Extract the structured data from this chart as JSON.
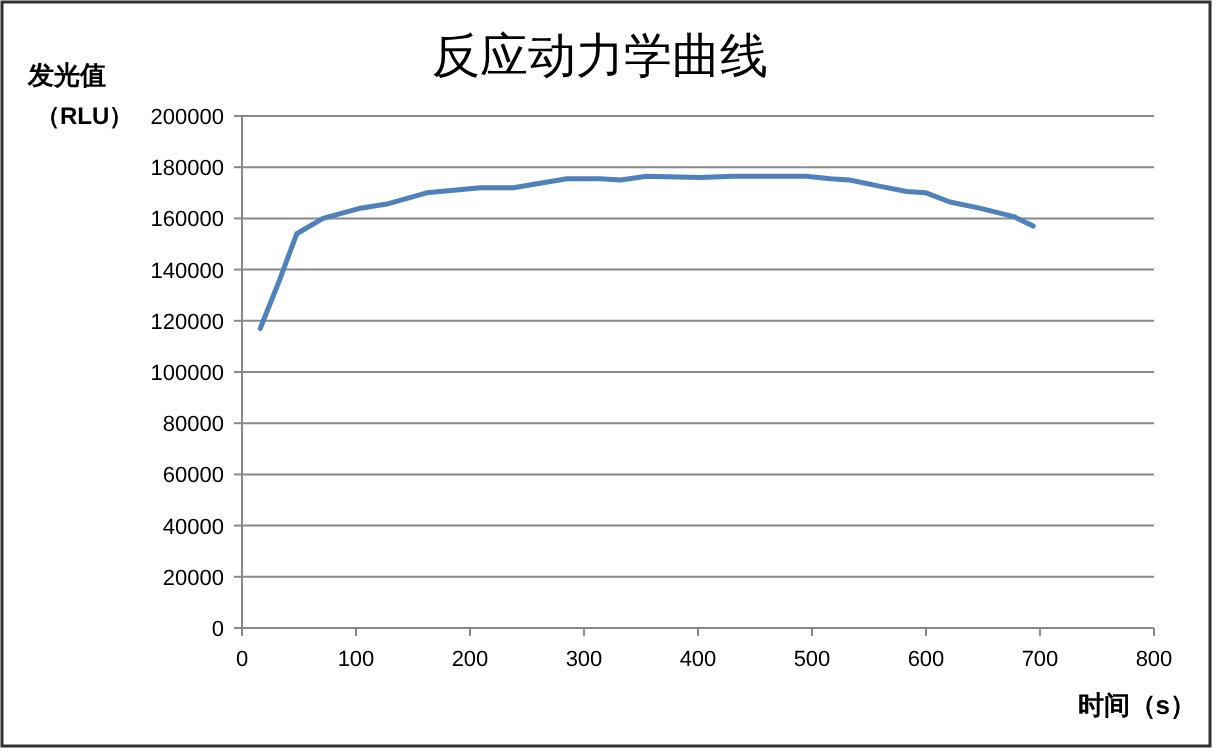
{
  "chart_data": {
    "type": "line",
    "title": "反应动力学曲线",
    "xlabel": "时间（s）",
    "ylabel": "发光值（RLU）",
    "x": [
      16,
      33,
      48,
      71,
      104,
      127,
      162,
      209,
      238,
      285,
      314,
      332,
      355,
      402,
      431,
      495,
      516,
      533,
      560,
      583,
      600,
      621,
      647,
      677,
      694
    ],
    "series": [
      {
        "color": "#4f81bd",
        "values": [
          117000,
          136000,
          154000,
          160000,
          164000,
          165600,
          170000,
          172000,
          172000,
          175500,
          175500,
          175000,
          176500,
          176000,
          176500,
          176500,
          175500,
          175000,
          172500,
          170500,
          170000,
          166400,
          164000,
          160700,
          157000
        ]
      }
    ],
    "xlim": [
      0,
      800
    ],
    "xticks": [
      0,
      100,
      200,
      300,
      400,
      500,
      600,
      700,
      800
    ],
    "ylim": [
      0,
      200000
    ],
    "yticks": [
      0,
      20000,
      40000,
      60000,
      80000,
      100000,
      120000,
      140000,
      160000,
      180000,
      200000
    ],
    "grid": "y"
  }
}
